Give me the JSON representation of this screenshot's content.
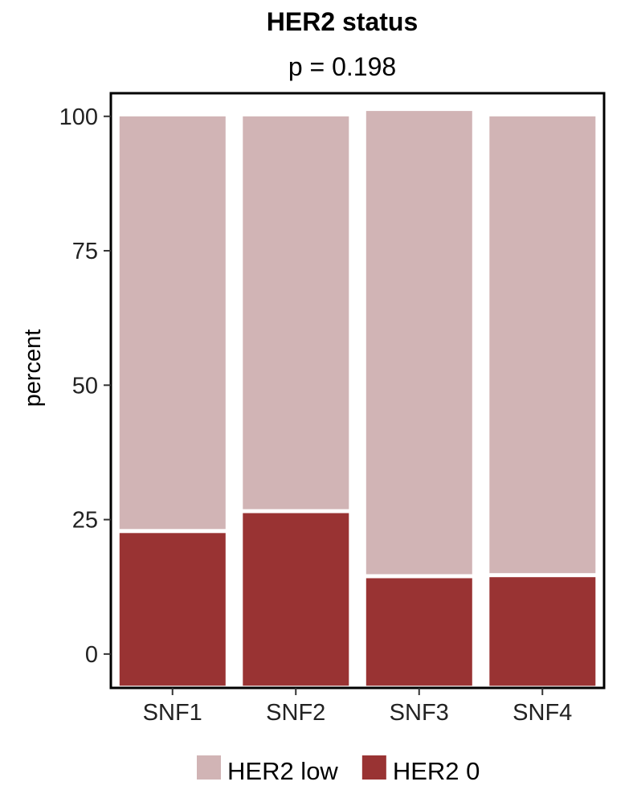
{
  "chart_data": {
    "type": "bar",
    "stacked": true,
    "title": "HER2 status",
    "subtitle": "p = 0.198",
    "xlabel": "",
    "ylabel": "percent",
    "categories": [
      "SNF1",
      "SNF2",
      "SNF3",
      "SNF4"
    ],
    "series": [
      {
        "name": "HER2 0",
        "color": "#993333",
        "values": [
          22.5,
          26.2,
          14.1,
          14.3
        ]
      },
      {
        "name": "HER2 low",
        "color": "#d1b4b5",
        "values": [
          77.5,
          73.8,
          86.9,
          85.7
        ]
      }
    ],
    "yticks": [
      0,
      25,
      50,
      75,
      100
    ],
    "ylim": [
      -6.3,
      104.3
    ],
    "bar_baseline": -5.9,
    "grid": false,
    "legend_position": "bottom",
    "legend_order": [
      "HER2 low",
      "HER2 0"
    ]
  }
}
